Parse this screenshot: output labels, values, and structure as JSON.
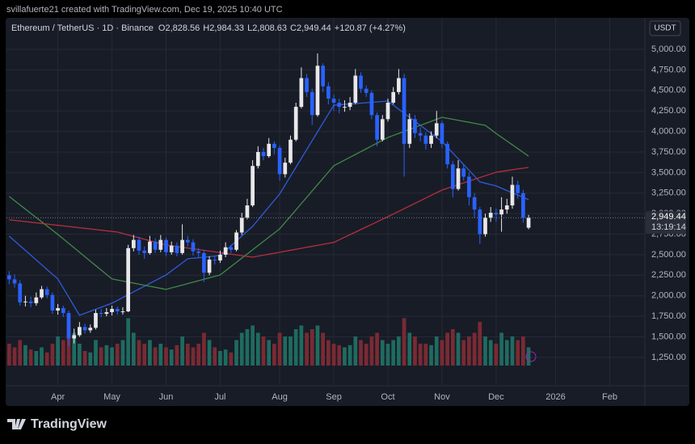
{
  "header": {
    "credit": "svillafuerte21 created with TradingView.com, Dec 19, 2025 10:40 UTC"
  },
  "footer": {
    "brand": "TradingView"
  },
  "chart_data": {
    "type": "candlestick",
    "title": "Ethereum / TetherUS · 1D · Binance",
    "ohlc_legend": [
      {
        "key": "O",
        "value": "2,828.56"
      },
      {
        "key": "H",
        "value": "2,984.33"
      },
      {
        "key": "L",
        "value": "2,808.63"
      },
      {
        "key": "C",
        "value": "2,949.44"
      }
    ],
    "change": "+120.87 (+4.27%)",
    "currency": "USDT",
    "countdown": "13:19:14",
    "last_price": {
      "value": 2949.44,
      "label": "2,949.44"
    },
    "up_color": "#e8e8ea",
    "down_color": "#2962ff",
    "volume_up_color": "#1f6b60",
    "volume_down_color": "#7a2a33",
    "grid": true,
    "categories": [
      null,
      null,
      null,
      null,
      null,
      null,
      null,
      null,
      null,
      "Apr",
      null,
      null,
      null,
      null,
      null,
      null,
      null,
      null,
      null,
      "May",
      null,
      null,
      null,
      null,
      null,
      null,
      null,
      null,
      null,
      "Jun",
      null,
      null,
      null,
      null,
      null,
      null,
      null,
      null,
      null,
      "Jul",
      null,
      null,
      null,
      null,
      null,
      null,
      null,
      null,
      null,
      null,
      "Aug",
      null,
      null,
      null,
      null,
      null,
      null,
      null,
      null,
      null,
      "Sep",
      null,
      null,
      null,
      null,
      null,
      null,
      null,
      null,
      null,
      "Oct",
      null,
      null,
      null,
      null,
      null,
      null,
      null,
      null,
      null,
      "Nov",
      null,
      null,
      null,
      null,
      null,
      null,
      null,
      null,
      null,
      "Dec",
      null,
      null,
      null,
      null,
      null,
      null,
      null,
      null,
      null,
      null,
      "2026",
      null,
      null,
      null,
      null,
      null,
      null,
      null,
      null,
      null,
      "Feb",
      null,
      null,
      null,
      null,
      null,
      null
    ],
    "open": [
      2250,
      2200,
      2150,
      1920,
      1930,
      1910,
      1980,
      2080,
      2010,
      1820,
      1850,
      1790,
      1480,
      1520,
      1620,
      1580,
      1610,
      1790,
      1780,
      1800,
      1840,
      1810,
      1810,
      2580,
      2680,
      2550,
      2520,
      2660,
      2560,
      2680,
      2530,
      2610,
      2520,
      2680,
      2650,
      2540,
      2520,
      2280,
      2440,
      2430,
      2500,
      2590,
      2560,
      2770,
      2950,
      3100,
      3580,
      3750,
      3700,
      3850,
      3800,
      3480,
      3620,
      3900,
      4300,
      4650,
      4480,
      4200,
      4800,
      4550,
      4400,
      4350,
      4300,
      4300,
      4350,
      4680,
      4520,
      4470,
      4200,
      3900,
      4150,
      4350,
      4480,
      4650,
      3850,
      4150,
      3980,
      3950,
      3850,
      3950,
      4100,
      3850,
      3600,
      3300,
      3550,
      3450,
      3200,
      3050,
      2750,
      2950,
      3010,
      2990,
      3050,
      3100,
      3350,
      3250,
      2828.56,
      null,
      null,
      null,
      null,
      null,
      null,
      null,
      null,
      null,
      null,
      null,
      null,
      null,
      null,
      null,
      null,
      null,
      null,
      null,
      null,
      null
    ],
    "high": [
      2300,
      2260,
      2190,
      2000,
      1990,
      2040,
      2120,
      2110,
      2040,
      1900,
      1880,
      1820,
      1600,
      1680,
      1660,
      1650,
      1830,
      1840,
      1850,
      1880,
      1870,
      1860,
      2620,
      2740,
      2720,
      2600,
      2730,
      2700,
      2740,
      2710,
      2660,
      2650,
      2870,
      2730,
      2690,
      2580,
      2560,
      2480,
      2490,
      2550,
      2650,
      2620,
      2800,
      3010,
      3180,
      3650,
      3820,
      3800,
      3920,
      3880,
      3830,
      3680,
      3950,
      4350,
      4780,
      4700,
      4520,
      4950,
      4830,
      4600,
      4450,
      4400,
      4380,
      4420,
      4760,
      4720,
      4560,
      4500,
      4230,
      4200,
      4400,
      4540,
      4760,
      4700,
      4220,
      4200,
      4050,
      3990,
      4000,
      4250,
      4130,
      3880,
      3640,
      3650,
      3600,
      3500,
      3250,
      3080,
      3000,
      3080,
      3060,
      3200,
      3180,
      3450,
      3400,
      3290,
      2984.33,
      null,
      null,
      null,
      null,
      null,
      null,
      null,
      null,
      null,
      null,
      null,
      null,
      null,
      null,
      null,
      null,
      null,
      null,
      null,
      null,
      null
    ],
    "low": [
      2140,
      2100,
      1880,
      1870,
      1860,
      1880,
      1960,
      1970,
      1780,
      1770,
      1740,
      1390,
      1420,
      1500,
      1540,
      1550,
      1590,
      1740,
      1750,
      1760,
      1770,
      1770,
      1800,
      2540,
      2500,
      2450,
      2500,
      2520,
      2530,
      2480,
      2500,
      2480,
      2500,
      2600,
      2490,
      2470,
      2170,
      2250,
      2380,
      2400,
      2470,
      2520,
      2540,
      2740,
      2930,
      3080,
      3550,
      3650,
      3680,
      3720,
      3400,
      3440,
      3600,
      3880,
      4280,
      4420,
      4080,
      4180,
      4480,
      4330,
      4250,
      4220,
      4240,
      4260,
      4330,
      4470,
      4420,
      4150,
      3820,
      3880,
      4120,
      4330,
      4450,
      3450,
      3800,
      3920,
      3880,
      3780,
      3800,
      3920,
      3800,
      3550,
      3200,
      3280,
      3400,
      3100,
      2950,
      2630,
      2720,
      2900,
      2900,
      2780,
      3000,
      3060,
      3180,
      2890,
      2808.63,
      null,
      null,
      null,
      null,
      null,
      null,
      null,
      null,
      null,
      null,
      null,
      null,
      null,
      null,
      null,
      null,
      null,
      null,
      null,
      null,
      null
    ],
    "close": [
      2200,
      2150,
      1920,
      1930,
      1910,
      1980,
      2080,
      2010,
      1820,
      1850,
      1790,
      1480,
      1520,
      1620,
      1580,
      1610,
      1790,
      1780,
      1800,
      1840,
      1810,
      1810,
      2580,
      2680,
      2550,
      2520,
      2660,
      2560,
      2680,
      2530,
      2610,
      2520,
      2680,
      2650,
      2540,
      2520,
      2280,
      2440,
      2430,
      2500,
      2590,
      2560,
      2770,
      2950,
      3100,
      3580,
      3750,
      3700,
      3850,
      3800,
      3480,
      3620,
      3900,
      4300,
      4650,
      4480,
      4200,
      4800,
      4550,
      4400,
      4350,
      4300,
      4300,
      4350,
      4680,
      4520,
      4470,
      4200,
      3900,
      4150,
      4350,
      4480,
      4650,
      3850,
      4150,
      3980,
      3950,
      3850,
      3950,
      4100,
      3850,
      3600,
      3300,
      3550,
      3450,
      3200,
      3050,
      2750,
      2950,
      3010,
      2990,
      3050,
      3100,
      3350,
      3250,
      2950,
      2949.44,
      null,
      null,
      null,
      null,
      null,
      null,
      null,
      null,
      null,
      null,
      null,
      null,
      null,
      null,
      null,
      null,
      null,
      null,
      null,
      null,
      null
    ],
    "volume": [
      30,
      25,
      35,
      28,
      22,
      20,
      25,
      18,
      30,
      40,
      35,
      60,
      45,
      30,
      20,
      18,
      35,
      25,
      28,
      25,
      30,
      35,
      65,
      45,
      35,
      30,
      35,
      25,
      30,
      25,
      22,
      28,
      40,
      30,
      25,
      30,
      45,
      35,
      25,
      20,
      22,
      18,
      35,
      45,
      50,
      55,
      45,
      40,
      35,
      30,
      45,
      40,
      40,
      50,
      55,
      45,
      50,
      55,
      45,
      35,
      30,
      28,
      25,
      28,
      40,
      35,
      30,
      40,
      45,
      35,
      30,
      35,
      40,
      65,
      45,
      40,
      30,
      30,
      28,
      40,
      35,
      45,
      50,
      45,
      35,
      40,
      45,
      60,
      40,
      35,
      30,
      45,
      35,
      40,
      35,
      40,
      25,
      null,
      null,
      null,
      null,
      null,
      null,
      null,
      null,
      null,
      null,
      null,
      null,
      null,
      null,
      null,
      null,
      null,
      null,
      null,
      null,
      null
    ],
    "volume_lim": [
      0,
      100
    ],
    "series": [
      {
        "color": "#2f5bd8",
        "values": [
          2726,
          2668,
          2610,
          2552,
          2494,
          2436,
          2378,
          2320,
          2262,
          2205,
          2094,
          1984,
          1873,
          1762,
          1787,
          1811,
          1836,
          1861,
          1885,
          1910,
          1944,
          1979,
          2013,
          2048,
          2082,
          2116,
          2151,
          2185,
          2220,
          2254,
          2303,
          2352,
          2401,
          2450,
          2457,
          2463,
          2470,
          2477,
          2483,
          2490,
          2549,
          2608,
          2668,
          2727,
          2786,
          2845,
          2924,
          3003,
          3082,
          3161,
          3240,
          3348,
          3456,
          3564,
          3672,
          3780,
          3888,
          3996,
          4104,
          4212,
          4320,
          4325,
          4330,
          4335,
          4340,
          4345,
          4350,
          4355,
          4360,
          4365,
          4370,
          4321,
          4271,
          4222,
          4173,
          4124,
          4074,
          4025,
          3976,
          3927,
          3878,
          3808,
          3738,
          3668,
          3597,
          3527,
          3457,
          3386,
          3370,
          3353,
          3337,
          3309,
          3281,
          3253,
          3226,
          3198,
          3170,
          null,
          null,
          null,
          null,
          null,
          null,
          null,
          null,
          null,
          null,
          null,
          null,
          null,
          null,
          null,
          null,
          null,
          null,
          null,
          null,
          null
        ]
      },
      {
        "color": "#3f8a44",
        "values": [
          3209,
          3158,
          3106,
          3055,
          3003,
          2952,
          2901,
          2849,
          2798,
          2746,
          2692,
          2638,
          2584,
          2530,
          2476,
          2421,
          2367,
          2313,
          2259,
          2205,
          2192,
          2179,
          2167,
          2154,
          2141,
          2128,
          2115,
          2103,
          2090,
          2077,
          2095,
          2113,
          2130,
          2148,
          2166,
          2183,
          2201,
          2219,
          2236,
          2254,
          2305,
          2356,
          2407,
          2458,
          2509,
          2560,
          2611,
          2662,
          2713,
          2764,
          2815,
          2892,
          2968,
          3045,
          3122,
          3199,
          3276,
          3353,
          3429,
          3506,
          3583,
          3617,
          3652,
          3686,
          3720,
          3755,
          3789,
          3824,
          3858,
          3893,
          3927,
          3952,
          3976,
          4001,
          4025,
          4050,
          4075,
          4099,
          4124,
          4148,
          4173,
          4161,
          4148,
          4136,
          4124,
          4112,
          4099,
          4087,
          4075,
          4026,
          3976,
          3930,
          3884,
          3838,
          3792,
          3746,
          3700,
          null,
          null,
          null,
          null,
          null,
          null,
          null,
          null,
          null,
          null,
          null,
          null,
          null,
          null,
          null,
          null,
          null,
          null,
          null,
          null,
          null
        ]
      },
      {
        "color": "#b3303c",
        "values": [
          2925,
          2918,
          2910,
          2903,
          2895,
          2888,
          2880,
          2873,
          2865,
          2858,
          2851,
          2843,
          2836,
          2828,
          2821,
          2813,
          2806,
          2798,
          2791,
          2783,
          2776,
          2758,
          2741,
          2723,
          2706,
          2688,
          2671,
          2653,
          2636,
          2618,
          2609,
          2599,
          2590,
          2581,
          2572,
          2562,
          2553,
          2544,
          2535,
          2525,
          2516,
          2507,
          2498,
          2488,
          2479,
          2470,
          2482,
          2494,
          2506,
          2518,
          2530,
          2542,
          2554,
          2566,
          2578,
          2590,
          2602,
          2614,
          2626,
          2638,
          2650,
          2681,
          2713,
          2744,
          2775,
          2807,
          2838,
          2869,
          2900,
          2932,
          2963,
          2995,
          3028,
          3060,
          3093,
          3125,
          3157,
          3190,
          3222,
          3255,
          3287,
          3309,
          3330,
          3352,
          3374,
          3396,
          3417,
          3439,
          3461,
          3482,
          3504,
          3514,
          3524,
          3534,
          3544,
          3553,
          3563,
          null,
          null,
          null,
          null,
          null,
          null,
          null,
          null,
          null,
          null,
          null,
          null,
          null,
          null,
          null,
          null,
          null,
          null,
          null,
          null,
          null
        ]
      }
    ],
    "ylim": [
      924,
      5384
    ],
    "yticks": [
      {
        "value": 1250,
        "label": "1,250.00"
      },
      {
        "value": 1500,
        "label": "1,500.00"
      },
      {
        "value": 1750,
        "label": "1,750.00"
      },
      {
        "value": 2000,
        "label": "2,000.00"
      },
      {
        "value": 2250,
        "label": "2,250.00"
      },
      {
        "value": 2500,
        "label": "2,500.00"
      },
      {
        "value": 2750,
        "label": "2,750.00"
      },
      {
        "value": 3000,
        "label": "3,000.00"
      },
      {
        "value": 3250,
        "label": "3,250.00"
      },
      {
        "value": 3500,
        "label": "3,500.00"
      },
      {
        "value": 3750,
        "label": "3,750.00"
      },
      {
        "value": 4000,
        "label": "4,000.00"
      },
      {
        "value": 4250,
        "label": "4,250.00"
      },
      {
        "value": 4500,
        "label": "4,500.00"
      },
      {
        "value": 4750,
        "label": "4,750.00"
      },
      {
        "value": 5000,
        "label": "5,000.00"
      }
    ]
  }
}
